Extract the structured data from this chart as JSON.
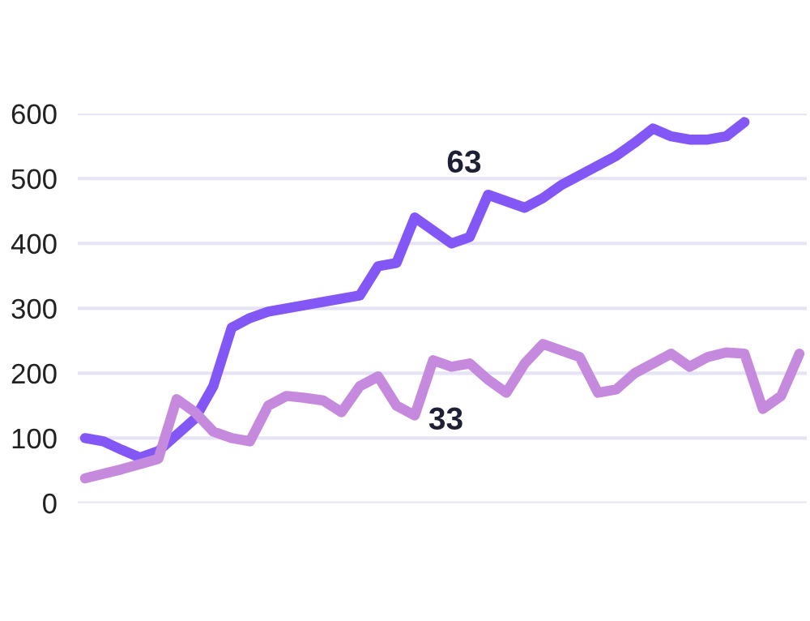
{
  "chart_data": {
    "type": "line",
    "categories": [
      null,
      null,
      null,
      null,
      null,
      null,
      null,
      null,
      null,
      null,
      null,
      null,
      null,
      null,
      null,
      null,
      null,
      null,
      null,
      null,
      null,
      null,
      null,
      null,
      null,
      null,
      null,
      null,
      null,
      null,
      null,
      null,
      null,
      null,
      null,
      null,
      null,
      null,
      null,
      null
    ],
    "series": [
      {
        "color": "#8257f6",
        "values": [
          100,
          95,
          82,
          70,
          80,
          105,
          130,
          180,
          270,
          285,
          295,
          300,
          305,
          310,
          315,
          320,
          365,
          370,
          440,
          420,
          400,
          410,
          475,
          465,
          455,
          470,
          490,
          505,
          520,
          535,
          555,
          577,
          565,
          560,
          560,
          565,
          587,
          null,
          null,
          null
        ]
      },
      {
        "color": "#c58ade",
        "values": [
          38,
          45,
          52,
          60,
          68,
          160,
          140,
          110,
          100,
          95,
          150,
          165,
          162,
          158,
          140,
          180,
          195,
          150,
          135,
          220,
          210,
          215,
          190,
          170,
          215,
          245,
          235,
          225,
          170,
          175,
          200,
          215,
          230,
          210,
          225,
          232,
          230,
          145,
          165,
          230
        ]
      }
    ],
    "ylim": [
      0,
      600
    ],
    "yticks": [
      0,
      100,
      200,
      300,
      400,
      500,
      600
    ],
    "grid": "y",
    "tick_labels": "y",
    "annotations": [
      "63",
      "33"
    ]
  }
}
